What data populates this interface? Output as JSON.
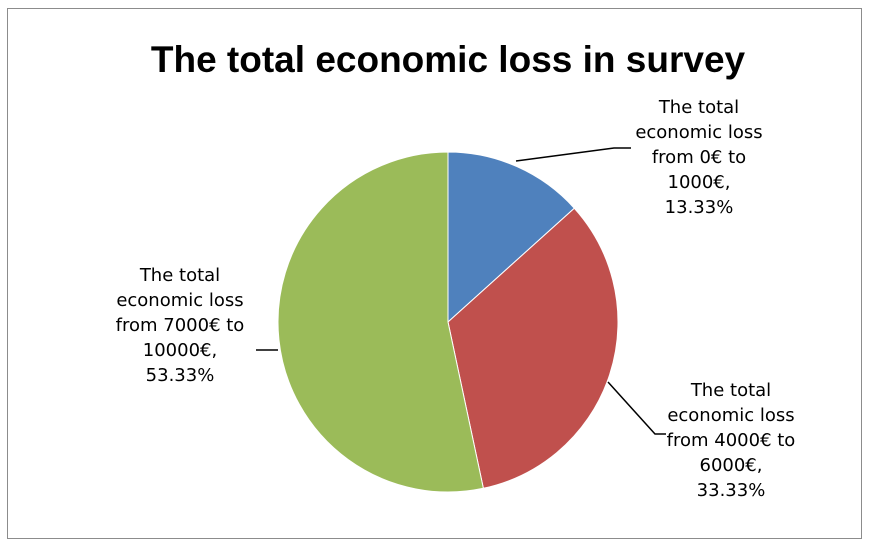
{
  "chart_data": {
    "type": "pie",
    "title": "The total economic loss in survey",
    "slices": [
      {
        "label_lines": [
          "The total",
          "economic loss",
          "from 0€ to",
          "1000€,",
          "13.33%"
        ],
        "value": 13.33,
        "color": "#4f81bd"
      },
      {
        "label_lines": [
          "The total",
          "economic loss",
          "from 4000€ to",
          "6000€,",
          "33.33%"
        ],
        "value": 33.33,
        "color": "#c0504d"
      },
      {
        "label_lines": [
          "The total",
          "economic loss",
          "from 7000€ to",
          "10000€,",
          "53.33%"
        ],
        "value": 53.33,
        "color": "#9bbb59"
      }
    ],
    "start_angle": "12 o'clock",
    "direction": "clockwise",
    "legend": "none"
  }
}
